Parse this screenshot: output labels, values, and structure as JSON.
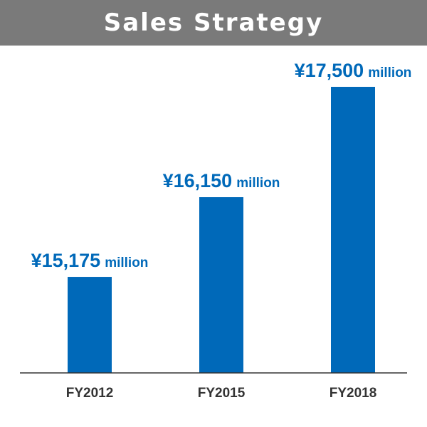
{
  "title": "Sales Strategy",
  "colors": {
    "title_bar": "#7a7a7a",
    "title_text": "#ffffff",
    "bar": "#0069b9",
    "value_label": "#0069b9",
    "category_label": "#333333",
    "axis": "#333333"
  },
  "chart_data": {
    "type": "bar",
    "categories": [
      "FY2012",
      "FY2015",
      "FY2018"
    ],
    "values": [
      15175,
      16150,
      17500
    ],
    "data_labels": [
      {
        "amount": "¥15,175",
        "unit": "million"
      },
      {
        "amount": "¥16,150",
        "unit": "million"
      },
      {
        "amount": "¥17,500",
        "unit": "million"
      }
    ],
    "title": "Sales Strategy",
    "xlabel": "",
    "ylabel": "",
    "ylim": [
      14000,
      18000
    ],
    "grid": false,
    "legend": "none"
  }
}
